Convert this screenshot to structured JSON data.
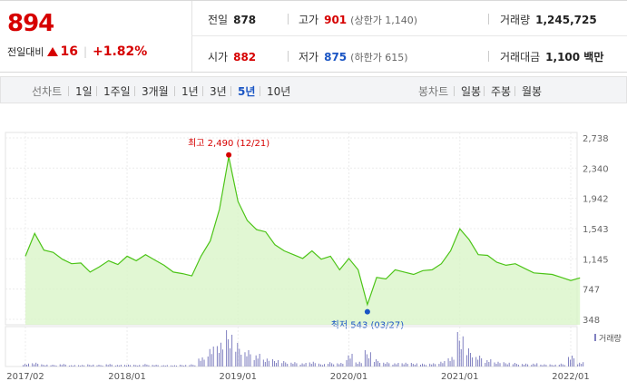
{
  "header": {
    "price": "894",
    "change_label": "전일대비",
    "change_amount": "16",
    "change_percent": "+1.82%",
    "prev_close_label": "전일",
    "prev_close": "878",
    "high_label": "고가",
    "high": "901",
    "upper_limit": "(상한가 1,140)",
    "volume_label": "거래량",
    "volume": "1,245,725",
    "open_label": "시가",
    "open": "882",
    "low_label": "저가",
    "low": "875",
    "lower_limit": "(하한가 615)",
    "amount_label": "거래대금",
    "amount": "1,100 백만"
  },
  "toolbar": {
    "line_label": "선차트",
    "line_periods": [
      "1일",
      "1주일",
      "3개월",
      "1년",
      "3년",
      "5년",
      "10년"
    ],
    "selected_period": "5년",
    "candle_label": "봉차트",
    "candle_periods": [
      "일봉",
      "주봉",
      "월봉"
    ]
  },
  "colors": {
    "up": "#d60000",
    "down": "#1a55c4",
    "line": "#4cc417",
    "fill": "#d9f5c8"
  },
  "chart_data": {
    "type": "area",
    "y_ticks": [
      2738,
      2340,
      1942,
      1543,
      1145,
      747,
      348
    ],
    "y_tick_labels": [
      "2,738",
      "2,340",
      "1,942",
      "1,543",
      "1,145",
      "747",
      "348"
    ],
    "ylim": [
      348,
      2738
    ],
    "x_labels": [
      "2017/02",
      "2018/01",
      "2019/01",
      "2020/01",
      "2021/01",
      "2022/01"
    ],
    "x_label_dates": [
      "2017-02",
      "2018-01",
      "2019-01",
      "2020-01",
      "2021-01",
      "2022-01"
    ],
    "xlim": [
      "2017-02",
      "2022-01"
    ],
    "series": [
      {
        "values": [
          [
            "2017-02",
            1180
          ],
          [
            "2017-03",
            1480
          ],
          [
            "2017-04",
            1260
          ],
          [
            "2017-05",
            1230
          ],
          [
            "2017-06",
            1140
          ],
          [
            "2017-07",
            1080
          ],
          [
            "2017-08",
            1090
          ],
          [
            "2017-09",
            970
          ],
          [
            "2017-10",
            1040
          ],
          [
            "2017-11",
            1120
          ],
          [
            "2017-12",
            1070
          ],
          [
            "2018-01",
            1180
          ],
          [
            "2018-02",
            1120
          ],
          [
            "2018-03",
            1200
          ],
          [
            "2018-04",
            1130
          ],
          [
            "2018-05",
            1060
          ],
          [
            "2018-06",
            970
          ],
          [
            "2018-07",
            950
          ],
          [
            "2018-08",
            920
          ],
          [
            "2018-09",
            1180
          ],
          [
            "2018-10",
            1380
          ],
          [
            "2018-11",
            1800
          ],
          [
            "2018-12",
            2490
          ],
          [
            "2019-01",
            1900
          ],
          [
            "2019-02",
            1650
          ],
          [
            "2019-03",
            1530
          ],
          [
            "2019-04",
            1500
          ],
          [
            "2019-05",
            1330
          ],
          [
            "2019-06",
            1250
          ],
          [
            "2019-07",
            1200
          ],
          [
            "2019-08",
            1150
          ],
          [
            "2019-09",
            1250
          ],
          [
            "2019-10",
            1140
          ],
          [
            "2019-11",
            1180
          ],
          [
            "2019-12",
            1000
          ],
          [
            "2020-01",
            1150
          ],
          [
            "2020-02",
            1000
          ],
          [
            "2020-03",
            543
          ],
          [
            "2020-04",
            900
          ],
          [
            "2020-05",
            880
          ],
          [
            "2020-06",
            1000
          ],
          [
            "2020-07",
            970
          ],
          [
            "2020-08",
            940
          ],
          [
            "2020-09",
            990
          ],
          [
            "2020-10",
            1000
          ],
          [
            "2020-11",
            1080
          ],
          [
            "2020-12",
            1250
          ],
          [
            "2021-01",
            1540
          ],
          [
            "2021-02",
            1400
          ],
          [
            "2021-03",
            1200
          ],
          [
            "2021-04",
            1190
          ],
          [
            "2021-05",
            1100
          ],
          [
            "2021-06",
            1060
          ],
          [
            "2021-07",
            1080
          ],
          [
            "2021-08",
            1020
          ],
          [
            "2021-09",
            960
          ],
          [
            "2021-10",
            950
          ],
          [
            "2021-11",
            940
          ],
          [
            "2021-12",
            900
          ],
          [
            "2022-01",
            860
          ],
          [
            "2022-02",
            894
          ]
        ]
      }
    ],
    "volume_label": "거래량",
    "volume_relative": [
      0.08,
      0.12,
      0.06,
      0.05,
      0.07,
      0.04,
      0.05,
      0.06,
      0.05,
      0.07,
      0.05,
      0.06,
      0.05,
      0.07,
      0.05,
      0.04,
      0.04,
      0.05,
      0.06,
      0.25,
      0.55,
      0.75,
      1.0,
      0.65,
      0.45,
      0.35,
      0.25,
      0.2,
      0.15,
      0.12,
      0.1,
      0.15,
      0.08,
      0.12,
      0.1,
      0.35,
      0.15,
      0.45,
      0.2,
      0.12,
      0.1,
      0.12,
      0.1,
      0.08,
      0.09,
      0.15,
      0.3,
      0.95,
      0.5,
      0.3,
      0.2,
      0.15,
      0.12,
      0.1,
      0.08,
      0.09,
      0.07,
      0.06,
      0.08,
      0.3,
      0.12
    ],
    "annotations": [
      {
        "label": "최고 2,490 (12/21)",
        "x": "2018-12",
        "y": 2490,
        "kind": "max"
      },
      {
        "label": "최저 543 (03/27)",
        "x": "2020-03",
        "y": 543,
        "kind": "min"
      }
    ]
  }
}
